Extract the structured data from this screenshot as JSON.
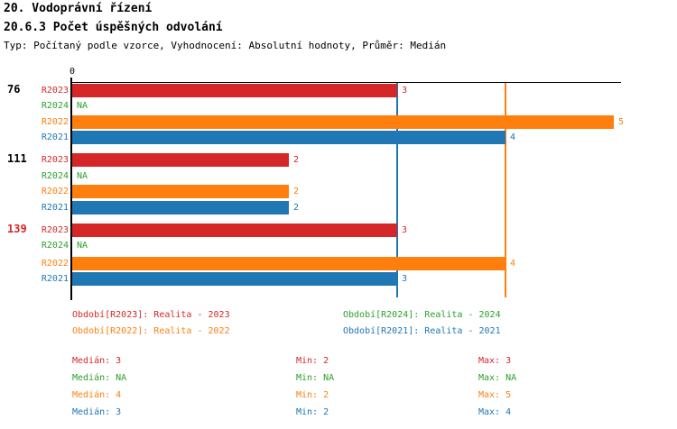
{
  "header": {
    "title_line1": "20. Vodoprávní řízení",
    "title_line2": "20.6.3 Počet úspěšných odvolání",
    "subtitle": "Typ: Počítaný podle vzorce, Vyhodnocení: Absolutní hodnoty, Průměr: Medián"
  },
  "colors": {
    "red": "#d62728",
    "green": "#2ca02c",
    "orange": "#ff7f0e",
    "blue": "#1f77b4",
    "axis": "#000000"
  },
  "chart_data": {
    "type": "bar",
    "orientation": "horizontal",
    "title": "20.6.3 Počet úspěšných odvolání",
    "xlim": [
      0,
      5
    ],
    "x_axis_tick_labels": [
      "0"
    ],
    "grid": "reference-lines-only",
    "groups": [
      "76",
      "111",
      "139"
    ],
    "group_label_colors": [
      "#000000",
      "#000000",
      "#d62728"
    ],
    "na_label": "NA",
    "series": [
      {
        "name": "R2023",
        "color": "#d62728",
        "values": [
          3,
          2,
          3
        ]
      },
      {
        "name": "R2024",
        "color": "#2ca02c",
        "values": [
          null,
          null,
          null
        ],
        "display_values": [
          "NA",
          "NA",
          "NA"
        ]
      },
      {
        "name": "R2022",
        "color": "#ff7f0e",
        "values": [
          5,
          2,
          4
        ]
      },
      {
        "name": "R2021",
        "color": "#1f77b4",
        "values": [
          4,
          2,
          3
        ]
      }
    ],
    "reference_lines": [
      {
        "value": 3,
        "color": "#1f77b4"
      },
      {
        "value": 4,
        "color": "#ff7f0e"
      }
    ]
  },
  "legend": {
    "items": [
      {
        "label": "Období[R2023]: Realita - 2023",
        "color": "#d62728"
      },
      {
        "label": "Období[R2024]: Realita - 2024",
        "color": "#2ca02c"
      },
      {
        "label": "Období[R2022]: Realita - 2022",
        "color": "#ff7f0e"
      },
      {
        "label": "Období[R2021]: Realita - 2021",
        "color": "#1f77b4"
      }
    ]
  },
  "stats": {
    "rows": [
      {
        "color": "#d62728",
        "cells": [
          "Medián: 3",
          "Min: 2",
          "Max: 3"
        ]
      },
      {
        "color": "#2ca02c",
        "cells": [
          "Medián: NA",
          "Min: NA",
          "Max: NA"
        ]
      },
      {
        "color": "#ff7f0e",
        "cells": [
          "Medián: 4",
          "Min: 2",
          "Max: 5"
        ]
      },
      {
        "color": "#1f77b4",
        "cells": [
          "Medián: 3",
          "Min: 2",
          "Max: 4"
        ]
      }
    ]
  }
}
